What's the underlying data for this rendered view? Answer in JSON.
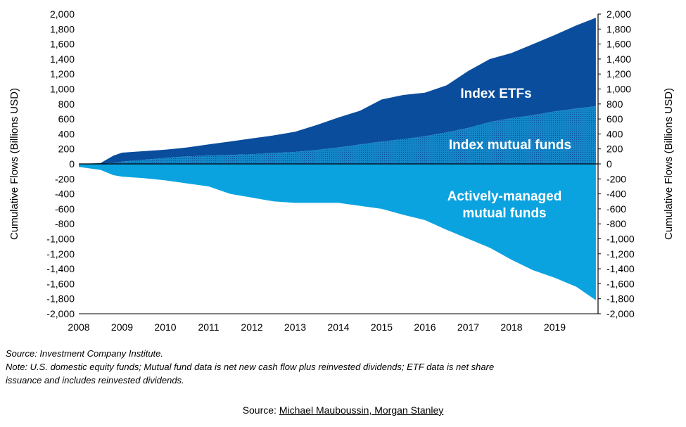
{
  "chart_data": {
    "type": "area",
    "ylabel_left": "Cumulative Flows (Billions USD)",
    "ylabel_right": "Cumulative Flows (Billions USD)",
    "ylim": [
      -2000,
      2000
    ],
    "yticks": [
      2000,
      1800,
      1600,
      1400,
      1200,
      1000,
      800,
      600,
      400,
      200,
      0,
      -200,
      -400,
      -600,
      -800,
      -1000,
      -1200,
      -1400,
      -1600,
      -1800,
      -2000
    ],
    "ytick_labels": [
      "2,000",
      "1,800",
      "1,600",
      "1,400",
      "1,200",
      "1,000",
      "800",
      "600",
      "400",
      "200",
      "0",
      "-200",
      "-400",
      "-600",
      "-800",
      "-1,000",
      "-1,200",
      "-1,400",
      "-1,600",
      "-1,800",
      "-2,000"
    ],
    "xlim": [
      2008,
      2020
    ],
    "xticks": [
      2008,
      2009,
      2010,
      2011,
      2012,
      2013,
      2014,
      2015,
      2016,
      2017,
      2018,
      2019
    ],
    "xtick_labels": [
      "2008",
      "2009",
      "2010",
      "2011",
      "2012",
      "2013",
      "2014",
      "2015",
      "2016",
      "2017",
      "2018",
      "2019"
    ],
    "x": [
      2008.0,
      2008.5,
      2008.8,
      2009.0,
      2009.5,
      2010.0,
      2010.5,
      2011.0,
      2011.5,
      2012.0,
      2012.5,
      2013.0,
      2013.5,
      2014.0,
      2014.5,
      2015.0,
      2015.5,
      2016.0,
      2016.5,
      2017.0,
      2017.5,
      2018.0,
      2018.5,
      2019.0,
      2019.5,
      2019.95
    ],
    "series": [
      {
        "name": "Index mutual funds",
        "label": "Index mutual funds",
        "values": [
          0,
          0,
          10,
          30,
          55,
          80,
          100,
          110,
          120,
          130,
          145,
          160,
          185,
          220,
          260,
          300,
          330,
          370,
          420,
          480,
          560,
          610,
          650,
          700,
          740,
          770
        ]
      },
      {
        "name": "Index ETFs",
        "label": "Index ETFs",
        "values": [
          0,
          10,
          110,
          150,
          170,
          190,
          220,
          260,
          300,
          340,
          380,
          430,
          520,
          620,
          710,
          860,
          920,
          950,
          1050,
          1240,
          1400,
          1480,
          1600,
          1720,
          1850,
          1950
        ]
      },
      {
        "name": "Actively-managed mutual funds",
        "label_lines": [
          "Actively-managed",
          "mutual funds"
        ],
        "values": [
          -40,
          -80,
          -150,
          -170,
          -190,
          -220,
          -260,
          -300,
          -400,
          -450,
          -500,
          -520,
          -520,
          -520,
          -560,
          -600,
          -680,
          -750,
          -880,
          -1000,
          -1120,
          -1280,
          -1420,
          -1520,
          -1640,
          -1820
        ]
      }
    ]
  },
  "colors": {
    "index_etfs": "#0a4d9c",
    "index_mutual_funds": "#1486c8",
    "actively_managed": "#0aa3e0",
    "zero_line": "#000000"
  },
  "notes": {
    "source": "Source: Investment Company Institute.",
    "note_line1": "Note: U.S. domestic equity funds; Mutual fund data is net new cash flow plus reinvested dividends; ETF data is net share",
    "note_line2": "issuance and includes reinvested dividends."
  },
  "credit": {
    "prefix": "Source: ",
    "author": "Michael Mauboussin, Morgan Stanley"
  }
}
